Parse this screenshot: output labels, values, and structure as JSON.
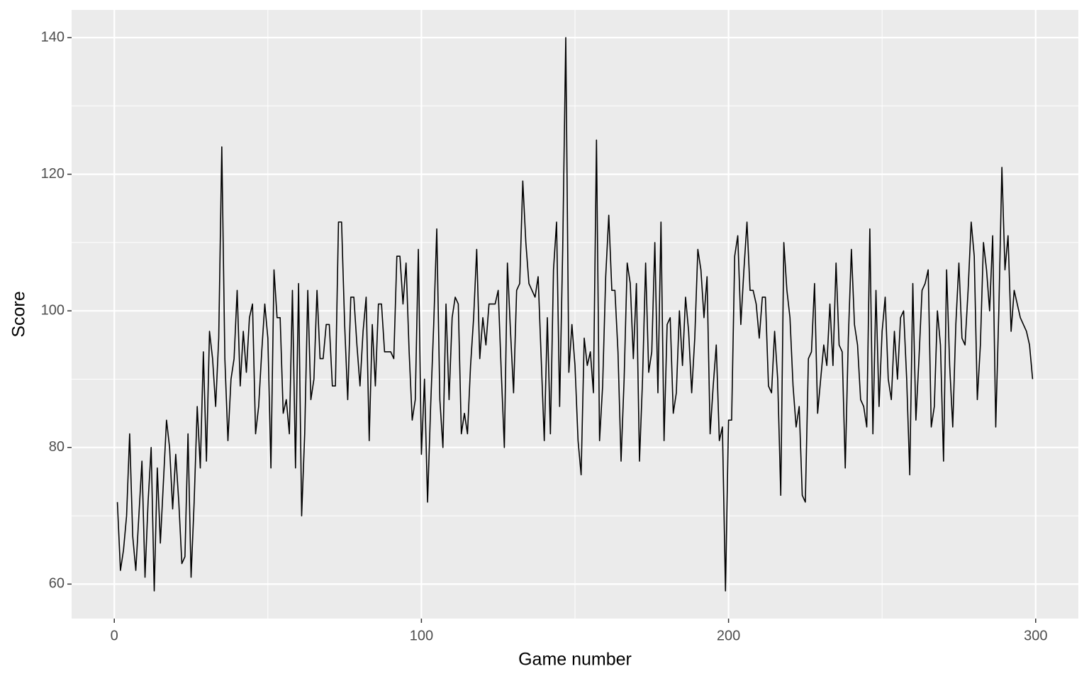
{
  "chart_data": {
    "type": "line",
    "x_label": "Game number",
    "y_label": "Score",
    "x": [
      1,
      2,
      3,
      4,
      5,
      6,
      7,
      8,
      9,
      10,
      11,
      12,
      13,
      14,
      15,
      16,
      17,
      18,
      19,
      20,
      21,
      22,
      23,
      24,
      25,
      26,
      27,
      28,
      29,
      30,
      31,
      32,
      33,
      34,
      35,
      36,
      37,
      38,
      39,
      40,
      41,
      42,
      43,
      44,
      45,
      46,
      47,
      48,
      49,
      50,
      51,
      52,
      53,
      54,
      55,
      56,
      57,
      58,
      59,
      60,
      61,
      62,
      63,
      64,
      65,
      66,
      67,
      68,
      69,
      70,
      71,
      72,
      73,
      74,
      75,
      76,
      77,
      78,
      79,
      80,
      81,
      82,
      83,
      84,
      85,
      86,
      87,
      88,
      89,
      90,
      91,
      92,
      93,
      94,
      95,
      96,
      97,
      98,
      99,
      100,
      101,
      102,
      103,
      104,
      105,
      106,
      107,
      108,
      109,
      110,
      111,
      112,
      113,
      114,
      115,
      116,
      117,
      118,
      119,
      120,
      121,
      122,
      123,
      124,
      125,
      126,
      127,
      128,
      129,
      130,
      131,
      132,
      133,
      134,
      135,
      136,
      137,
      138,
      139,
      140,
      141,
      142,
      143,
      144,
      145,
      146,
      147,
      148,
      149,
      150,
      151,
      152,
      153,
      154,
      155,
      156,
      157,
      158,
      159,
      160,
      161,
      162,
      163,
      164,
      165,
      166,
      167,
      168,
      169,
      170,
      171,
      172,
      173,
      174,
      175,
      176,
      177,
      178,
      179,
      180,
      181,
      182,
      183,
      184,
      185,
      186,
      187,
      188,
      189,
      190,
      191,
      192,
      193,
      194,
      195,
      196,
      197,
      198,
      199,
      200,
      201,
      202,
      203,
      204,
      205,
      206,
      207,
      208,
      209,
      210,
      211,
      212,
      213,
      214,
      215,
      216,
      217,
      218,
      219,
      220,
      221,
      222,
      223,
      224,
      225,
      226,
      227,
      228,
      229,
      230,
      231,
      232,
      233,
      234,
      235,
      236,
      237,
      238,
      239,
      240,
      241,
      242,
      243,
      244,
      245,
      246,
      247,
      248,
      249,
      250,
      251,
      252,
      253,
      254,
      255,
      256,
      257,
      258,
      259,
      260,
      261,
      262,
      263,
      264,
      265,
      266,
      267,
      268,
      269,
      270,
      271,
      272,
      273,
      274,
      275,
      276,
      277,
      278,
      279,
      280,
      281,
      282,
      283,
      284,
      285,
      286,
      287,
      288,
      289,
      290,
      291,
      292,
      293,
      294,
      295,
      296,
      297,
      298,
      299
    ],
    "values": [
      72,
      62,
      65,
      70,
      82,
      67,
      62,
      70,
      78,
      61,
      72,
      80,
      59,
      77,
      66,
      75,
      84,
      80,
      71,
      79,
      72,
      63,
      64,
      82,
      61,
      72,
      86,
      77,
      94,
      78,
      97,
      93,
      86,
      96,
      124,
      93,
      81,
      90,
      93,
      103,
      89,
      97,
      91,
      99,
      101,
      82,
      86,
      94,
      101,
      96,
      77,
      106,
      99,
      99,
      85,
      87,
      82,
      103,
      77,
      104,
      70,
      82,
      103,
      87,
      90,
      103,
      93,
      93,
      98,
      98,
      89,
      89,
      113,
      113,
      98,
      87,
      102,
      102,
      95,
      89,
      97,
      102,
      81,
      98,
      89,
      101,
      101,
      94,
      94,
      94,
      93,
      108,
      108,
      101,
      107,
      94,
      84,
      87,
      109,
      79,
      90,
      72,
      86,
      98,
      112,
      87,
      80,
      101,
      87,
      99,
      102,
      101,
      82,
      85,
      82,
      92,
      99,
      109,
      93,
      99,
      95,
      101,
      101,
      101,
      103,
      91,
      80,
      107,
      97,
      88,
      103,
      104,
      119,
      110,
      104,
      103,
      102,
      105,
      93,
      81,
      99,
      82,
      106,
      113,
      86,
      109,
      140,
      91,
      98,
      92,
      81,
      76,
      96,
      92,
      94,
      88,
      125,
      81,
      89,
      105,
      114,
      103,
      103,
      94,
      78,
      90,
      107,
      104,
      93,
      104,
      78,
      90,
      107,
      91,
      94,
      110,
      88,
      113,
      81,
      98,
      99,
      85,
      88,
      100,
      92,
      102,
      97,
      88,
      96,
      109,
      106,
      99,
      105,
      82,
      89,
      95,
      81,
      83,
      59,
      84,
      84,
      108,
      111,
      98,
      106,
      113,
      103,
      103,
      101,
      96,
      102,
      102,
      89,
      88,
      97,
      90,
      73,
      110,
      103,
      99,
      89,
      83,
      86,
      73,
      72,
      93,
      94,
      104,
      85,
      90,
      95,
      92,
      101,
      92,
      107,
      95,
      94,
      77,
      96,
      109,
      98,
      95,
      87,
      86,
      83,
      112,
      82,
      103,
      86,
      97,
      102,
      90,
      87,
      97,
      90,
      99,
      100,
      90,
      76,
      104,
      84,
      93,
      103,
      104,
      106,
      83,
      86,
      100,
      95,
      78,
      106,
      92,
      83,
      98,
      107,
      96,
      95,
      103,
      113,
      108,
      87,
      95,
      110,
      106,
      100,
      111,
      83,
      100,
      121,
      106,
      111,
      97,
      103,
      101,
      99,
      98,
      97,
      95,
      90
    ],
    "color": "#000000",
    "xlim": [
      -13.9,
      313.9
    ],
    "xticks": [
      0,
      100,
      200,
      300
    ],
    "ylim": [
      54.95,
      144.05
    ],
    "yticks": [
      60,
      80,
      100,
      120,
      140
    ],
    "grid": true
  }
}
